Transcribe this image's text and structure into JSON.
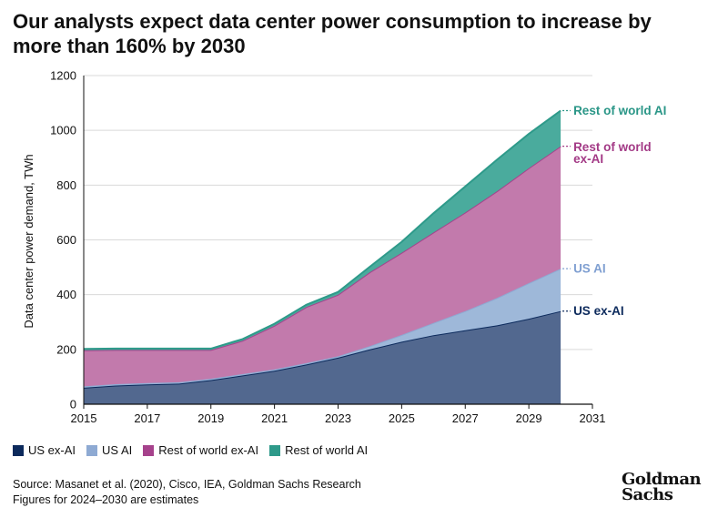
{
  "title": "Our analysts expect data center power consumption to increase by more than 160% by 2030",
  "source_line": "Source: Masanet et al. (2020), Cisco, IEA, Goldman Sachs Research",
  "note_line": "Figures for 2024–2030 are estimates",
  "logo": {
    "line1": "Goldman",
    "line2": "Sachs"
  },
  "chart_data": {
    "type": "area",
    "stacked": true,
    "ylabel": "Data center power demand, TWh",
    "xlabel": "",
    "xlim": [
      2015,
      2031
    ],
    "ylim": [
      0,
      1200
    ],
    "x_ticks": [
      2015,
      2017,
      2019,
      2021,
      2023,
      2025,
      2027,
      2029,
      2031
    ],
    "y_ticks": [
      0,
      200,
      400,
      600,
      800,
      1000,
      1200
    ],
    "grid": "horizontal",
    "legend_position": "bottom",
    "x": [
      2015,
      2016,
      2017,
      2018,
      2019,
      2020,
      2021,
      2022,
      2023,
      2024,
      2025,
      2026,
      2027,
      2028,
      2029,
      2030
    ],
    "series": [
      {
        "name": "US ex-AI",
        "color": "#52688f",
        "line_color": "#0c2a5c",
        "label_color": "#0c2a5c",
        "values": [
          60,
          68,
          72,
          75,
          88,
          105,
          122,
          145,
          170,
          200,
          228,
          252,
          270,
          288,
          312,
          340
        ]
      },
      {
        "name": "US AI",
        "color": "#9eb8d9",
        "line_color": "#8eaad3",
        "label_color": "#7f9fd1",
        "values": [
          5,
          5,
          5,
          5,
          5,
          5,
          5,
          5,
          5,
          12,
          25,
          45,
          70,
          100,
          130,
          155
        ]
      },
      {
        "name": "Rest of world ex-AI",
        "color": "#c27aac",
        "line_color": "#a6428c",
        "label_color": "#a33a86",
        "values": [
          132,
          125,
          121,
          118,
          105,
          122,
          160,
          205,
          225,
          270,
          300,
          330,
          360,
          390,
          420,
          447
        ]
      },
      {
        "name": "Rest of world AI",
        "color": "#4aab9d",
        "line_color": "#2e9a8a",
        "label_color": "#2a9687",
        "values": [
          5,
          5,
          5,
          5,
          5,
          6,
          7,
          8,
          10,
          20,
          40,
          70,
          95,
          115,
          125,
          130
        ]
      }
    ],
    "end_labels": [
      {
        "series": "Rest of world AI",
        "lines": [
          "Rest of world AI"
        ]
      },
      {
        "series": "Rest of world ex-AI",
        "lines": [
          "Rest of world",
          "ex-AI"
        ]
      },
      {
        "series": "US AI",
        "lines": [
          "US AI"
        ]
      },
      {
        "series": "US ex-AI",
        "lines": [
          "US ex-AI"
        ]
      }
    ]
  }
}
